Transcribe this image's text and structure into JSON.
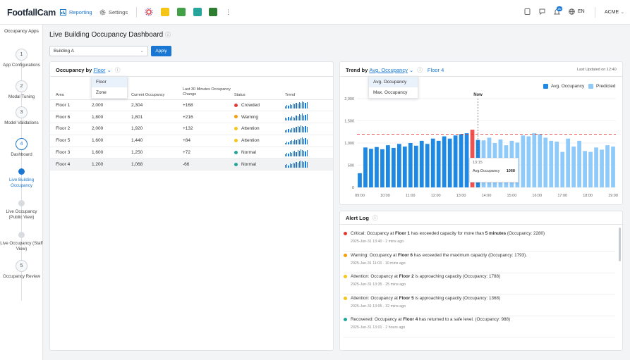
{
  "app": {
    "logo": "FootfallCam",
    "nav": [
      {
        "label": "Reporting",
        "icon": "chart-icon"
      },
      {
        "label": "Settings",
        "icon": "gear-icon"
      }
    ],
    "lang": "EN",
    "account": "ACME",
    "notification_count": "20"
  },
  "sidebar": {
    "title": "Occupancy Apps",
    "steps": [
      {
        "marker": "1",
        "label": "App Configurations"
      },
      {
        "marker": "2",
        "label": "Modal Tuning"
      },
      {
        "marker": "3",
        "label": "Model Validations"
      },
      {
        "marker": "4",
        "label": "Dashboard"
      },
      {
        "marker": "",
        "label": "Live Building Occupancy"
      },
      {
        "marker": "",
        "label": "Live Occupancy (Public View)"
      },
      {
        "marker": "",
        "label": "Live Occupancy (Staff View)"
      },
      {
        "marker": "5",
        "label": "Occupancy Review"
      }
    ]
  },
  "page": {
    "title": "Live Building Occupancy Dashboard",
    "building_select": "Building A",
    "apply_label": "Apply"
  },
  "occupancy_card": {
    "title_prefix": "Occupancy by",
    "group_by": "Floor",
    "dropdown_options": [
      "Floor",
      "Zone"
    ],
    "columns": [
      "Area",
      "",
      "Current Occupancy",
      "Last 30 Minutes Occupancy Change",
      "Status",
      "Trend"
    ],
    "rows": [
      {
        "area": "Floor 1",
        "capacity": "2,000",
        "current": "2,304",
        "change": "+168",
        "status": "Crowded",
        "status_color": "#e53935",
        "trend": [
          3,
          5,
          4,
          6,
          5,
          7,
          6,
          8,
          7,
          9,
          8,
          10,
          9,
          8,
          9
        ]
      },
      {
        "area": "Floor 6",
        "capacity": "1,800",
        "current": "1,801",
        "change": "+216",
        "status": "Warning",
        "status_color": "#f59e0b",
        "trend": [
          4,
          3,
          5,
          4,
          6,
          5,
          4,
          7,
          6,
          9,
          8,
          10,
          7,
          8,
          9
        ]
      },
      {
        "area": "Floor 2",
        "capacity": "2,000",
        "current": "1,920",
        "change": "+132",
        "status": "Attention",
        "status_color": "#f5c518",
        "trend": [
          3,
          4,
          5,
          4,
          6,
          7,
          6,
          8,
          9,
          8,
          10,
          9,
          8,
          9,
          8
        ]
      },
      {
        "area": "Floor 5",
        "capacity": "1,600",
        "current": "1,440",
        "change": "+84",
        "status": "Attention",
        "status_color": "#f5c518",
        "trend": [
          2,
          4,
          3,
          5,
          6,
          5,
          7,
          6,
          8,
          7,
          9,
          10,
          8,
          9,
          7
        ]
      },
      {
        "area": "Floor 3",
        "capacity": "1,600",
        "current": "1,250",
        "change": "+72",
        "status": "Normal",
        "status_color": "#26a69a",
        "trend": [
          3,
          5,
          4,
          6,
          5,
          7,
          8,
          6,
          9,
          8,
          10,
          9,
          8,
          7,
          9
        ]
      },
      {
        "area": "Floor 4",
        "capacity": "1,200",
        "current": "1,068",
        "change": "-66",
        "status": "Normal",
        "status_color": "#26a69a",
        "trend": [
          4,
          5,
          3,
          6,
          5,
          7,
          6,
          8,
          7,
          9,
          10,
          9,
          8,
          9,
          8
        ]
      }
    ]
  },
  "trend_card": {
    "title_prefix": "Trend by",
    "metric": "Avg. Occupancy",
    "floor": "Floor 4",
    "last_updated": "Last Updated on 12:40",
    "dropdown_options": [
      "Avg. Occupancy",
      "Max. Occupancy"
    ],
    "legend": [
      {
        "label": "Avg. Occupancy",
        "color": "#1e88e5"
      },
      {
        "label": "Predicted",
        "color": "#90caf9"
      }
    ],
    "now_label": "Now",
    "tooltip": {
      "time": "13:15",
      "label": "Avg.Occupancy",
      "value": "1068"
    }
  },
  "chart_data": {
    "type": "bar",
    "x_ticks": [
      "09:00",
      "10:00",
      "11:00",
      "12:00",
      "13:00",
      "14:00",
      "15:00",
      "16:00",
      "17:00",
      "18:00",
      "19:00"
    ],
    "y_ticks": [
      "0",
      "500",
      "1,000",
      "1,500",
      "2,000"
    ],
    "ylim": [
      0,
      2000
    ],
    "threshold": 1200,
    "series": [
      {
        "name": "Avg. Occupancy",
        "color": "#1e88e5",
        "values": [
          320,
          900,
          870,
          910,
          860,
          950,
          890,
          980,
          920,
          1000,
          940,
          1050,
          980,
          1100,
          1050,
          1150,
          1100,
          1170,
          1200,
          1220
        ]
      },
      {
        "name": "Predicted",
        "color": "#90caf9",
        "values": [
          1060,
          1120,
          1000,
          1080,
          950,
          1050,
          1010,
          1170,
          1150,
          1220,
          1200,
          1120,
          1050,
          1030,
          800,
          1100,
          920,
          1050,
          820,
          800,
          900,
          850,
          950,
          920
        ]
      }
    ],
    "highlight": {
      "value": 1300,
      "color": "#ef5350"
    },
    "current": {
      "value": 1068,
      "color": "#1e88e5"
    }
  },
  "alerts": {
    "title": "Alert Log",
    "items": [
      {
        "color": "#e53935",
        "pre": "Critical: Occupancy at ",
        "b1": "Floor 1",
        "mid": " has exceeded capacity for more than ",
        "b2": "5 minutes",
        "post": " (Occupancy: 2280)",
        "time": "2025-Jun-31 13:40",
        "ago": "2 mins ago"
      },
      {
        "color": "#f59e0b",
        "pre": "Warning: Occupancy at ",
        "b1": "Floor 6",
        "mid": " has exceeded the maximum capacity (Occupancy: 1793).",
        "b2": "",
        "post": "",
        "time": "2025-Jun-31 11:03",
        "ago": "10 mins ago"
      },
      {
        "color": "#f5c518",
        "pre": "Attention: Occupancy at ",
        "b1": "Floor 2",
        "mid": " is approaching capacity (Occupancy: 1788)",
        "b2": "",
        "post": "",
        "time": "2025-Jun-31 13:35",
        "ago": "25 mins ago"
      },
      {
        "color": "#f5c518",
        "pre": "Attention: Occupancy at ",
        "b1": "Floor 5",
        "mid": " is approaching capacity (Occupancy: 1368)",
        "b2": "",
        "post": "",
        "time": "2025-Jun-31 13:05",
        "ago": "32 mins ago"
      },
      {
        "color": "#26a69a",
        "pre": "Recovered: Occupancy at ",
        "b1": "Floor 4",
        "mid": " has returned to a safe level. (Occupancy: 988)",
        "b2": "",
        "post": "",
        "time": "2025-Jun-31 13:01",
        "ago": "2 hours ago"
      }
    ]
  }
}
